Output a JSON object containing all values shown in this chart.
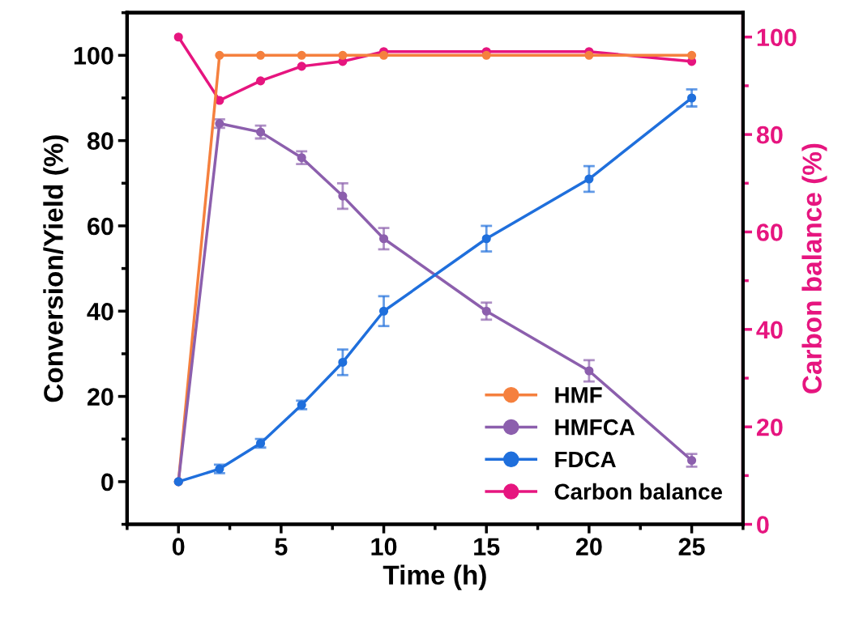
{
  "chart_data": {
    "type": "line",
    "xlabel": "Time (h)",
    "ylabel": "Conversion/Yield (%)",
    "y2label": "Carbon balance (%)",
    "x": [
      0,
      2,
      4,
      6,
      8,
      10,
      15,
      20,
      25
    ],
    "series": [
      {
        "name": "HMF",
        "color": "#f5803e",
        "values": [
          0,
          100,
          100,
          100,
          100,
          100,
          100,
          100,
          100
        ]
      },
      {
        "name": "HMFCA",
        "color": "#8c5fad",
        "values": [
          0,
          84,
          82,
          76,
          67,
          57,
          40,
          26,
          5
        ],
        "errors": [
          null,
          1,
          1.5,
          1.5,
          3,
          2.5,
          2,
          2.5,
          1.5
        ]
      },
      {
        "name": "FDCA",
        "color": "#1f6fdc",
        "values": [
          0,
          3,
          9,
          18,
          28,
          40,
          57,
          71,
          90
        ],
        "errors": [
          null,
          1,
          1,
          1,
          3,
          3.5,
          3,
          3,
          2
        ]
      },
      {
        "name": "Carbon balance",
        "color": "#e6157f",
        "axis": "y2",
        "values": [
          100,
          87,
          91,
          94,
          95,
          97,
          97,
          97,
          95
        ]
      }
    ],
    "xlim": [
      -2.5,
      27.5
    ],
    "xticks": [
      0,
      5,
      10,
      15,
      20,
      25
    ],
    "ylim": [
      -10,
      110
    ],
    "yticks": [
      0,
      20,
      40,
      60,
      80,
      100
    ],
    "y2lim": [
      0,
      105
    ],
    "y2ticks": [
      0,
      20,
      40,
      60,
      80,
      100
    ],
    "marker": "circle",
    "line_style": "solid",
    "legend": "bottom right",
    "grid": false
  }
}
